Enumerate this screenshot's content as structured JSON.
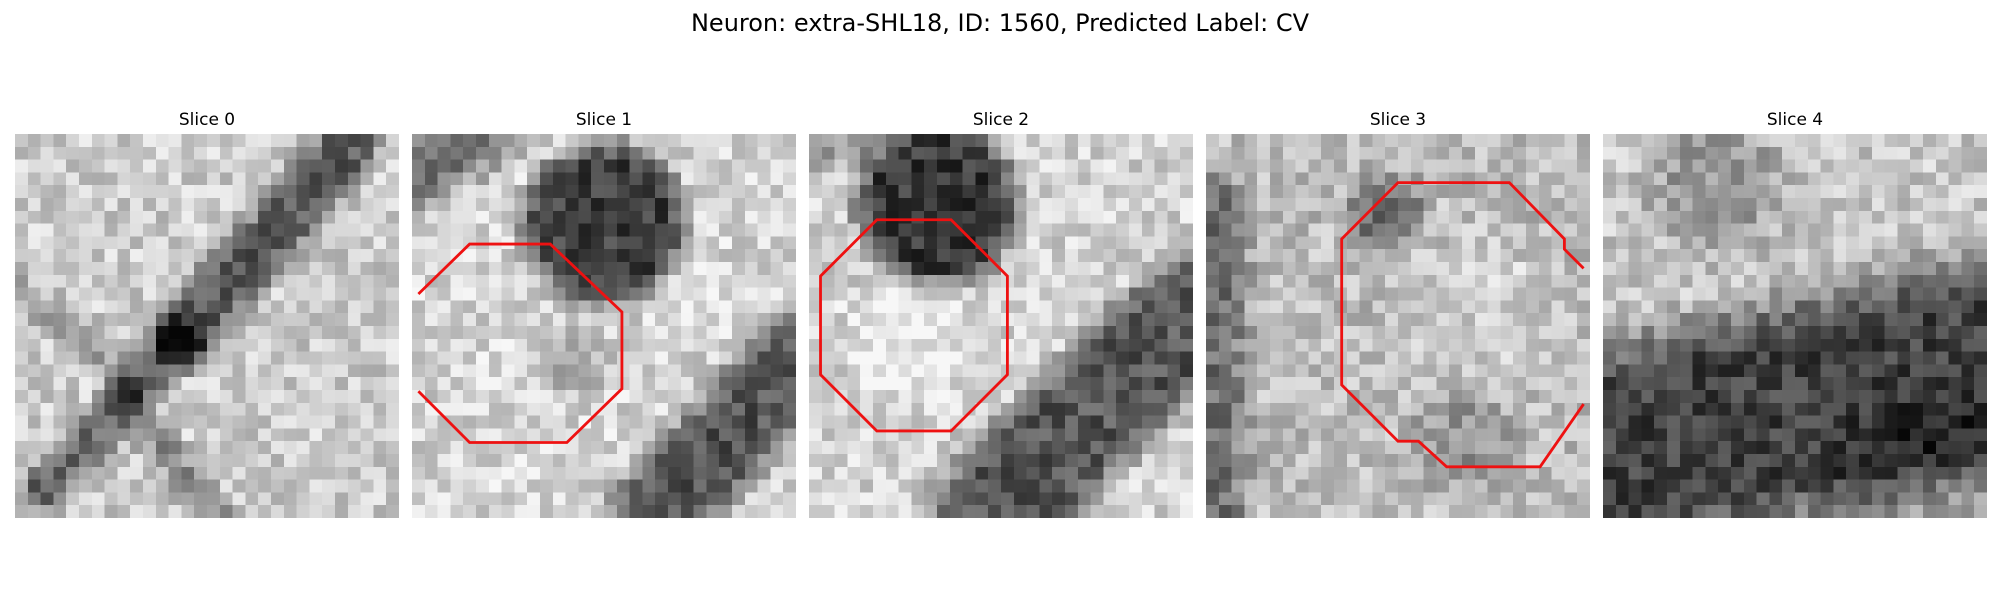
{
  "figure": {
    "title": "Neuron: extra-SHL18, ID: 1560, Predicted Label: CV"
  },
  "panels": [
    {
      "title": "Slice 0",
      "has_contour": false
    },
    {
      "title": "Slice 1",
      "has_contour": true
    },
    {
      "title": "Slice 2",
      "has_contour": true
    },
    {
      "title": "Slice 3",
      "has_contour": true
    },
    {
      "title": "Slice 4",
      "has_contour": false
    }
  ],
  "colors": {
    "background": "#ffffff",
    "contour": "#ee1111",
    "image_colormap": "gray"
  }
}
